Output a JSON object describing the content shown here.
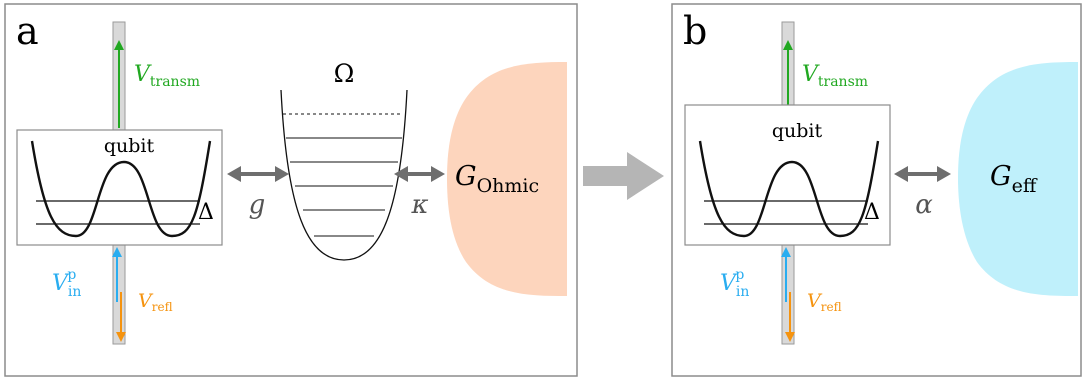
{
  "panel_a": {
    "label": "a",
    "qubit_label": "qubit",
    "delta": "Δ",
    "v_transm": "V",
    "v_transm_sub": "transm",
    "v_in": "V",
    "v_in_sub": "in",
    "v_in_sup": "p",
    "v_refl": "V",
    "v_refl_sub": "refl",
    "coupling_g": "g",
    "resonator_freq": "Ω",
    "coupling_kappa": "κ",
    "bath": "G",
    "bath_sub": "Ohmic"
  },
  "panel_b": {
    "label": "b",
    "qubit_label": "qubit",
    "delta": "Δ",
    "v_transm": "V",
    "v_transm_sub": "transm",
    "v_in": "V",
    "v_in_sub": "in",
    "v_in_sup": "p",
    "v_refl": "V",
    "v_refl_sub": "refl",
    "coupling_alpha": "α",
    "bath": "G",
    "bath_sub": "eff"
  },
  "colors": {
    "frame": "#8c8c8c",
    "transmitted": "#21a821",
    "incident": "#29adf0",
    "reflected": "#f5930f",
    "ohmic_bath": "#fdd5bd",
    "effective_bath": "#bff0fb",
    "coupling_arrow": "#6e6e6e",
    "transition_arrow": "#b5b5b5",
    "waveguide": "#d9d9d9"
  }
}
